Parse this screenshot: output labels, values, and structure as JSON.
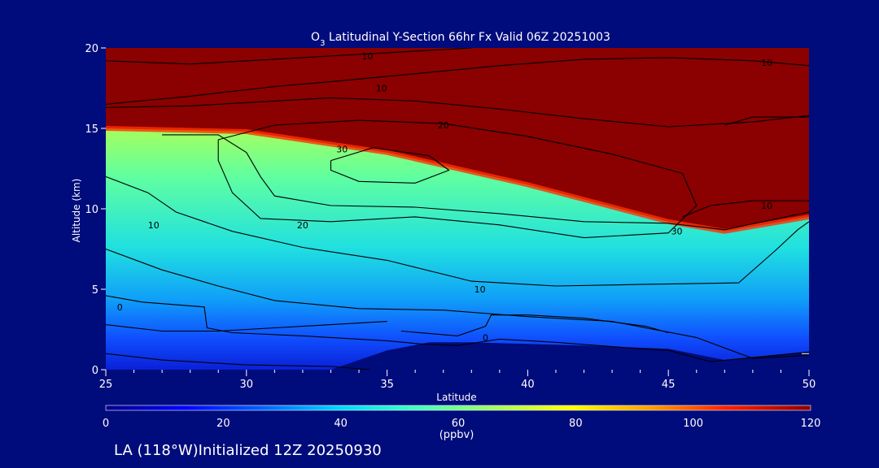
{
  "chart_data": {
    "type": "heatmap",
    "title_parts": {
      "species": "O",
      "subscript": "3",
      "rest": " Latitudinal Y-Section 66hr  Fx Valid 06Z 20251003"
    },
    "xlabel": "Latitude",
    "ylabel": "Altitude (km)",
    "xlim": [
      25,
      50
    ],
    "ylim": [
      0,
      20
    ],
    "x_ticks": [
      "25",
      "30",
      "35",
      "40",
      "45",
      "50"
    ],
    "y_ticks": [
      "0",
      "5",
      "10",
      "15",
      "20"
    ],
    "field": {
      "description": "Ozone mixing ratio (ppbv), filled contours",
      "tropopause_height_km": [
        [
          25,
          15.0
        ],
        [
          30,
          14.8
        ],
        [
          35,
          13.5
        ],
        [
          40,
          11.5
        ],
        [
          45,
          9.2
        ],
        [
          47,
          8.6
        ],
        [
          50,
          9.5
        ]
      ],
      "surface_terrain_km": [
        [
          25,
          0.0
        ],
        [
          33,
          0.0
        ],
        [
          35,
          1.2
        ],
        [
          36.5,
          1.7
        ],
        [
          38,
          1.7
        ],
        [
          42,
          1.5
        ],
        [
          45,
          1.3
        ],
        [
          47,
          0.6
        ],
        [
          50,
          1.1
        ]
      ]
    },
    "contour_labels": [
      {
        "value": "10",
        "lat": 34.3,
        "alt": 19.5
      },
      {
        "value": "10",
        "lat": 48.5,
        "alt": 19.1
      },
      {
        "value": "10",
        "lat": 34.8,
        "alt": 17.5
      },
      {
        "value": "20",
        "lat": 37.0,
        "alt": 15.2
      },
      {
        "value": "30",
        "lat": 33.4,
        "alt": 13.7
      },
      {
        "value": "20",
        "lat": 32.0,
        "alt": 9.0
      },
      {
        "value": "10",
        "lat": 26.7,
        "alt": 9.0
      },
      {
        "value": "30",
        "lat": 45.3,
        "alt": 8.6
      },
      {
        "value": "10",
        "lat": 48.5,
        "alt": 10.2
      },
      {
        "value": "10",
        "lat": 38.3,
        "alt": 5.0
      },
      {
        "value": "0",
        "lat": 25.5,
        "alt": 3.9
      },
      {
        "value": "0",
        "lat": 38.5,
        "alt": 2.0
      }
    ],
    "colorbar": {
      "ticks": [
        "0",
        "20",
        "40",
        "60",
        "80",
        "100",
        "120"
      ],
      "range": [
        0,
        120
      ],
      "units": "(ppbv)",
      "colors": [
        "#00008a",
        "#0000ff",
        "#0060ff",
        "#00d6ff",
        "#40ffc0",
        "#a0ff60",
        "#ffff00",
        "#ffa000",
        "#ff2000",
        "#8b0000"
      ]
    }
  },
  "footer": "LA (118°W)Initialized 12Z 20250930"
}
